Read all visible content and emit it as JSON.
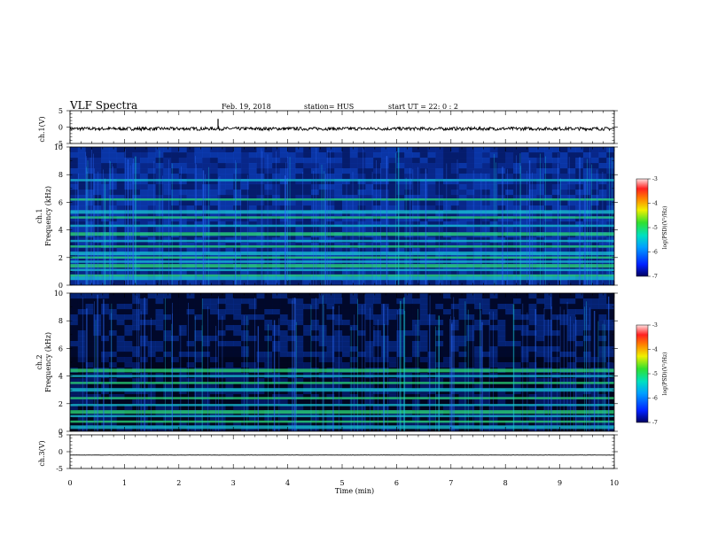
{
  "header": {
    "title": "VLF Spectra",
    "date": "Feb. 19, 2018",
    "station": "station= HUS",
    "start": "start  UT =   22: 0  : 2"
  },
  "chart_data": [
    {
      "type": "line",
      "panel": "ch1-waveform",
      "ylabel": "ch.1(V)",
      "yticks": [
        "5",
        "0",
        "-5"
      ],
      "ylim": [
        -5,
        5
      ],
      "series_color": "#000000",
      "approx_level": -0.5,
      "spike_at_min": 2.72
    },
    {
      "type": "heatmap",
      "panel": "ch1-spectrogram",
      "ylabel_line1": "ch.1",
      "ylabel_line2": "Frequency (kHz)",
      "yticks": [
        "10",
        "8",
        "6",
        "4",
        "2",
        "0"
      ],
      "ylim": [
        0,
        10
      ],
      "colorbar": {
        "label": "log(PSD)(V²/Hz)",
        "ticks": [
          "-3",
          "-4",
          "-5",
          "-6",
          "-7"
        ],
        "range": [
          -7,
          -3
        ]
      },
      "bands_khz": [
        0.5,
        0.7,
        1.1,
        1.4,
        1.7,
        2.0,
        2.3,
        2.8,
        3.2,
        3.7,
        4.3,
        4.9,
        5.3,
        6.2,
        7.6
      ]
    },
    {
      "type": "heatmap",
      "panel": "ch2-spectrogram",
      "ylabel_line1": "ch.2",
      "ylabel_line2": "Frequency (kHz)",
      "yticks": [
        "10",
        "8",
        "6",
        "4",
        "2",
        "0"
      ],
      "ylim": [
        0,
        10
      ],
      "colorbar": {
        "label": "log(PSD)(V²/Hz)",
        "ticks": [
          "-3",
          "-4",
          "-5",
          "-6",
          "-7"
        ],
        "range": [
          -7,
          -3
        ]
      },
      "bands_khz": [
        0.3,
        0.7,
        1.1,
        1.4,
        1.9,
        2.4,
        3.0,
        3.5,
        4.0,
        4.4
      ]
    },
    {
      "type": "line",
      "panel": "ch3-waveform",
      "ylabel": "ch.3(V)",
      "yticks": [
        "5",
        "0",
        "-5"
      ],
      "ylim": [
        -5,
        5
      ],
      "series_color": "#000000",
      "approx_level": -1.0
    }
  ],
  "xaxis": {
    "label": "Time (min)",
    "ticks": [
      "0",
      "1",
      "2",
      "3",
      "4",
      "5",
      "6",
      "7",
      "8",
      "9",
      "10"
    ],
    "xlim": [
      0,
      10
    ]
  },
  "colors": {
    "background_dark": "#00105a",
    "band_cyan": "#19c8d8",
    "band_green": "#2ee07a",
    "trace": "#000000"
  }
}
